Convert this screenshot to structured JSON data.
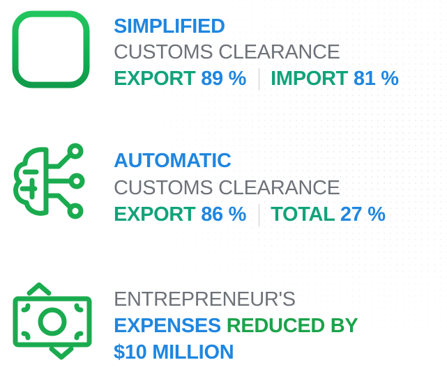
{
  "items": [
    {
      "title": "SIMPLIFIED",
      "subtitle": "CUSTOMS CLEARANCE",
      "stats": [
        {
          "label": "EXPORT",
          "value": "89 %"
        },
        {
          "label": "IMPORT",
          "value": "81 %"
        }
      ]
    },
    {
      "title": "AUTOMATIC",
      "subtitle": "CUSTOMS CLEARANCE",
      "stats": [
        {
          "label": "EXPORT",
          "value": "86 %"
        },
        {
          "label": "TOTAL",
          "value": "27 %"
        }
      ]
    },
    {
      "title": "ENTREPRENEUR'S",
      "highlight": "EXPENSES",
      "text": "REDUCED BY",
      "amount": "$10 MILLION"
    }
  ]
}
